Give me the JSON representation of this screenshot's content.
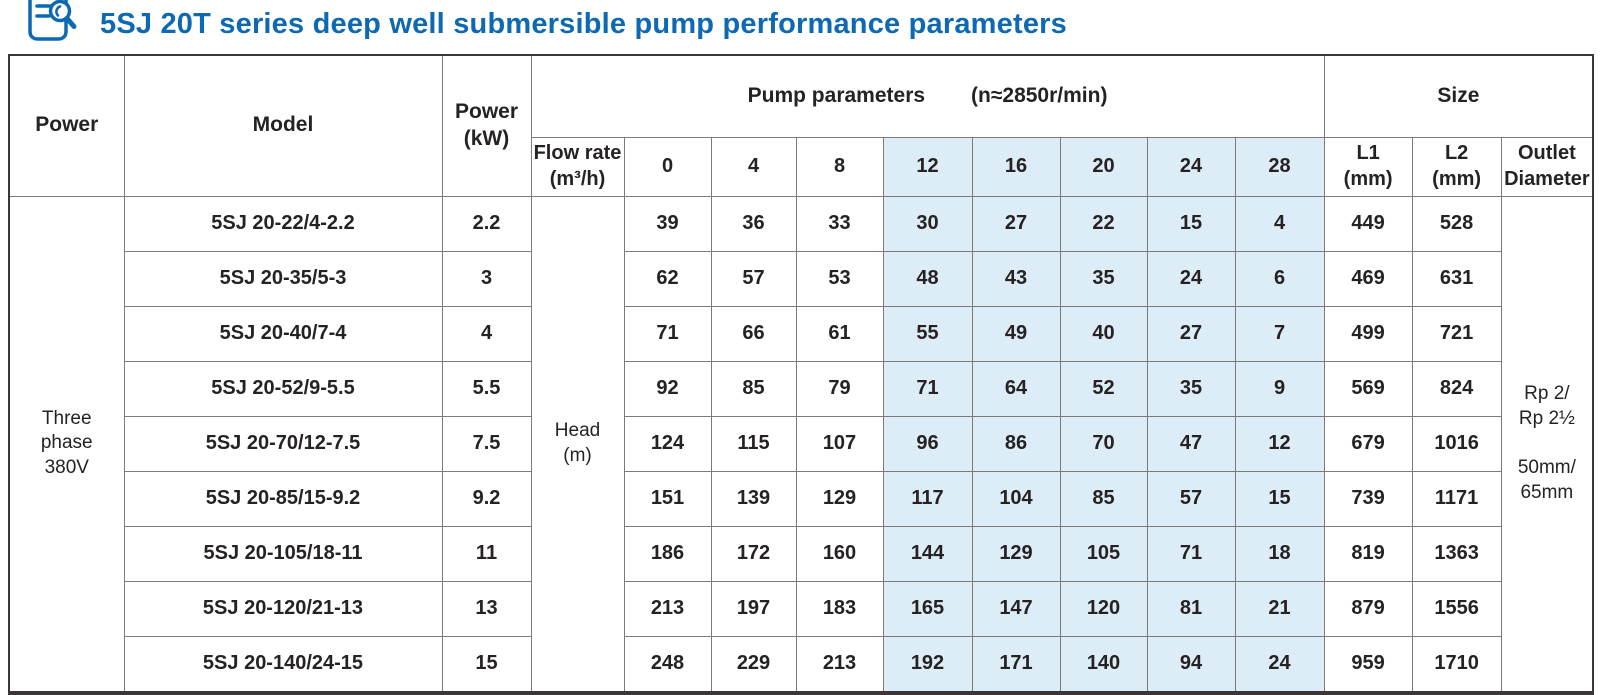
{
  "title": "5SJ 20T series deep well submersible pump performance parameters",
  "icon": "document-magnifier-icon",
  "colors": {
    "title_blue": "#0d69b1",
    "highlight_blue": "#dcedf7",
    "border_dark": "#3c3736",
    "border_light": "#7e7a79"
  },
  "table": {
    "header": {
      "power": "Power",
      "model": "Model",
      "power_kw": "Power\n(kW)",
      "pump_parameters": "Pump parameters",
      "speed_note": "(n≈2850r/min)",
      "size": "Size",
      "flow_rate": "Flow rate\n(m³/h)",
      "flow_values": [
        "0",
        "4",
        "8",
        "12",
        "16",
        "20",
        "24",
        "28"
      ],
      "l1": "L1\n(mm)",
      "l2": "L2\n(mm)",
      "outlet_diameter": "Outlet\nDiameter"
    },
    "merged": {
      "power_phase": "Three\nphase\n380V",
      "head_unit": "Head\n(m)",
      "outlet_diameter": "Rp 2/\nRp 2½\n\n50mm/\n65mm"
    },
    "rows": [
      {
        "model": "5SJ 20-22/4-2.2",
        "power_kw": "2.2",
        "heads": [
          "39",
          "36",
          "33",
          "30",
          "27",
          "22",
          "15",
          "4"
        ],
        "l1": "449",
        "l2": "528"
      },
      {
        "model": "5SJ 20-35/5-3",
        "power_kw": "3",
        "heads": [
          "62",
          "57",
          "53",
          "48",
          "43",
          "35",
          "24",
          "6"
        ],
        "l1": "469",
        "l2": "631"
      },
      {
        "model": "5SJ 20-40/7-4",
        "power_kw": "4",
        "heads": [
          "71",
          "66",
          "61",
          "55",
          "49",
          "40",
          "27",
          "7"
        ],
        "l1": "499",
        "l2": "721"
      },
      {
        "model": "5SJ 20-52/9-5.5",
        "power_kw": "5.5",
        "heads": [
          "92",
          "85",
          "79",
          "71",
          "64",
          "52",
          "35",
          "9"
        ],
        "l1": "569",
        "l2": "824"
      },
      {
        "model": "5SJ 20-70/12-7.5",
        "power_kw": "7.5",
        "heads": [
          "124",
          "115",
          "107",
          "96",
          "86",
          "70",
          "47",
          "12"
        ],
        "l1": "679",
        "l2": "1016"
      },
      {
        "model": "5SJ 20-85/15-9.2",
        "power_kw": "9.2",
        "heads": [
          "151",
          "139",
          "129",
          "117",
          "104",
          "85",
          "57",
          "15"
        ],
        "l1": "739",
        "l2": "1171"
      },
      {
        "model": "5SJ 20-105/18-11",
        "power_kw": "11",
        "heads": [
          "186",
          "172",
          "160",
          "144",
          "129",
          "105",
          "71",
          "18"
        ],
        "l1": "819",
        "l2": "1363"
      },
      {
        "model": "5SJ 20-120/21-13",
        "power_kw": "13",
        "heads": [
          "213",
          "197",
          "183",
          "165",
          "147",
          "120",
          "81",
          "21"
        ],
        "l1": "879",
        "l2": "1556"
      },
      {
        "model": "5SJ 20-140/24-15",
        "power_kw": "15",
        "heads": [
          "248",
          "229",
          "213",
          "192",
          "171",
          "140",
          "94",
          "24"
        ],
        "l1": "959",
        "l2": "1710"
      }
    ]
  }
}
